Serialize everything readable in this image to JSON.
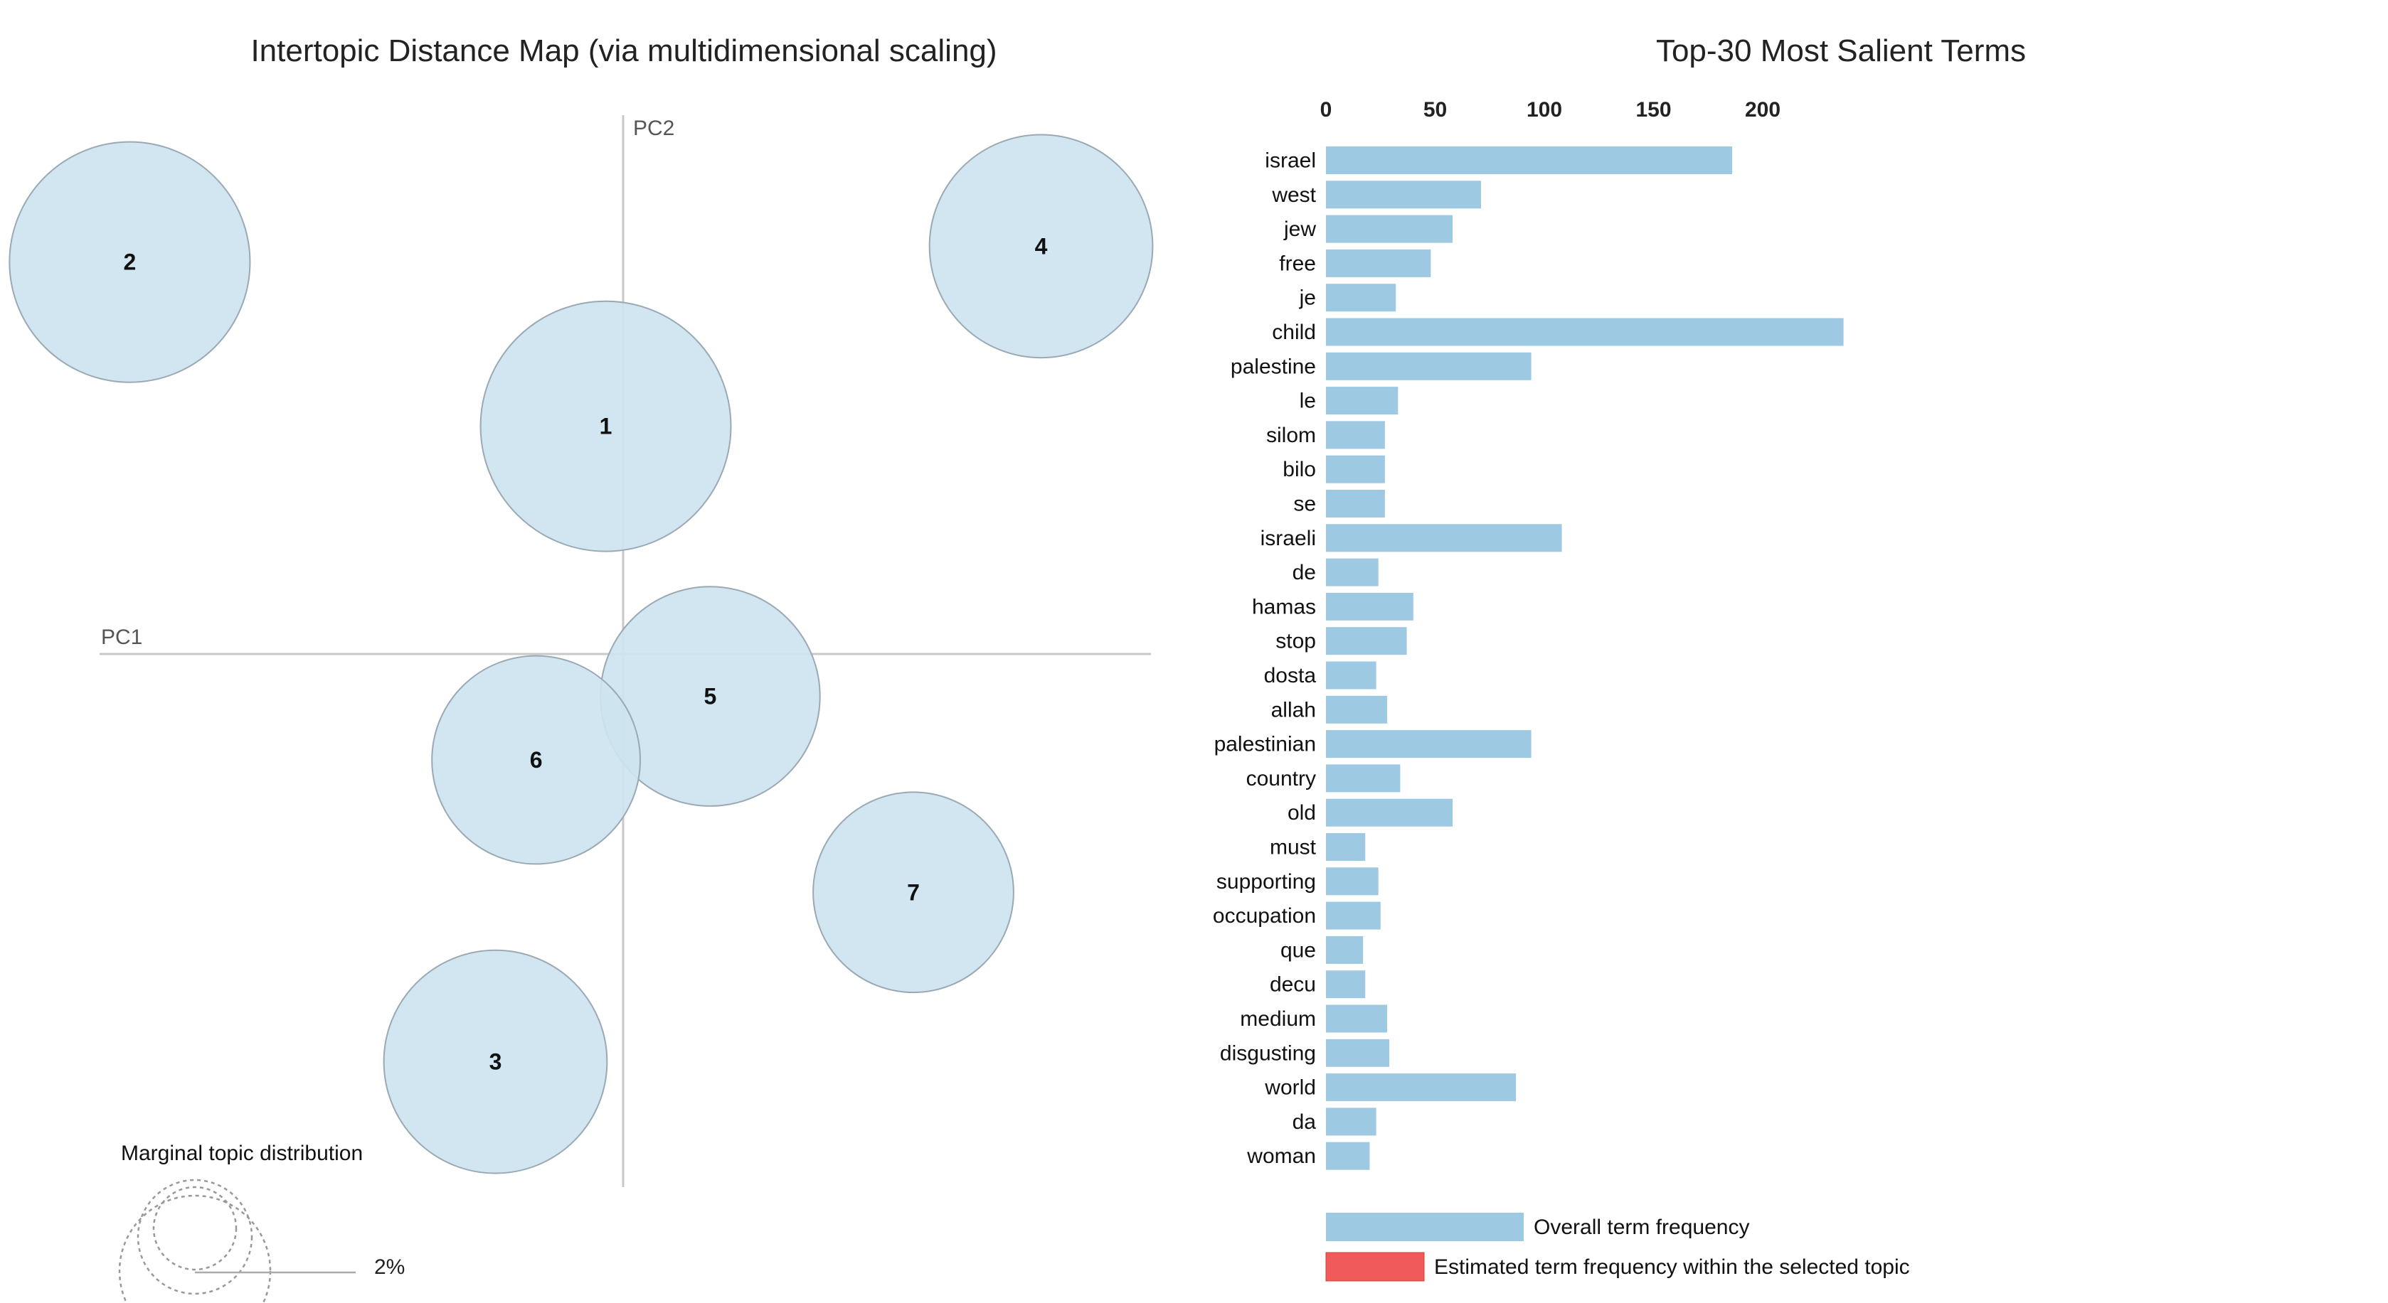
{
  "chart_data": [
    {
      "type": "scatter",
      "title": "Intertopic Distance Map (via multidimensional scaling)",
      "xlabel": "PC1",
      "ylabel": "PC2",
      "topics": [
        {
          "label": "1",
          "x": -0.03,
          "y": 0.43,
          "size": 0.078
        },
        {
          "label": "2",
          "x": -0.85,
          "y": 0.74,
          "size": 0.072
        },
        {
          "label": "3",
          "x": -0.22,
          "y": -0.77,
          "size": 0.062
        },
        {
          "label": "4",
          "x": 0.72,
          "y": 0.77,
          "size": 0.062
        },
        {
          "label": "5",
          "x": 0.15,
          "y": -0.08,
          "size": 0.06
        },
        {
          "label": "6",
          "x": -0.15,
          "y": -0.2,
          "size": 0.054
        },
        {
          "label": "7",
          "x": 0.5,
          "y": -0.45,
          "size": 0.05
        }
      ],
      "size_legend": {
        "title": "Marginal topic distribution",
        "value_label": "2%"
      }
    },
    {
      "type": "bar",
      "orientation": "horizontal",
      "title": "Top-30 Most Salient Terms",
      "xlim": [
        0,
        237
      ],
      "xticks": [
        0,
        50,
        100,
        150,
        200
      ],
      "categories": [
        "israel",
        "west",
        "jew",
        "free",
        "je",
        "child",
        "palestine",
        "le",
        "silom",
        "bilo",
        "se",
        "israeli",
        "de",
        "hamas",
        "stop",
        "dosta",
        "allah",
        "palestinian",
        "country",
        "old",
        "must",
        "supporting",
        "occupation",
        "que",
        "decu",
        "medium",
        "disgusting",
        "world",
        "da",
        "woman"
      ],
      "values": [
        186,
        71,
        58,
        48,
        32,
        237,
        94,
        33,
        27,
        27,
        27,
        108,
        24,
        40,
        37,
        23,
        28,
        94,
        34,
        58,
        18,
        24,
        25,
        17,
        18,
        28,
        29,
        87,
        23,
        20
      ],
      "series_colors": {
        "overall": "#9ec9e2",
        "selected": "#f15a5a"
      },
      "legend": [
        {
          "key": "overall",
          "label": "Overall term frequency"
        },
        {
          "key": "selected",
          "label": "Estimated term frequency within the selected topic"
        }
      ]
    }
  ],
  "colors": {
    "bubble_fill": "#cde4ef",
    "bubble_stroke": "#9aa9b3",
    "axis_line": "#c8c8c8"
  }
}
